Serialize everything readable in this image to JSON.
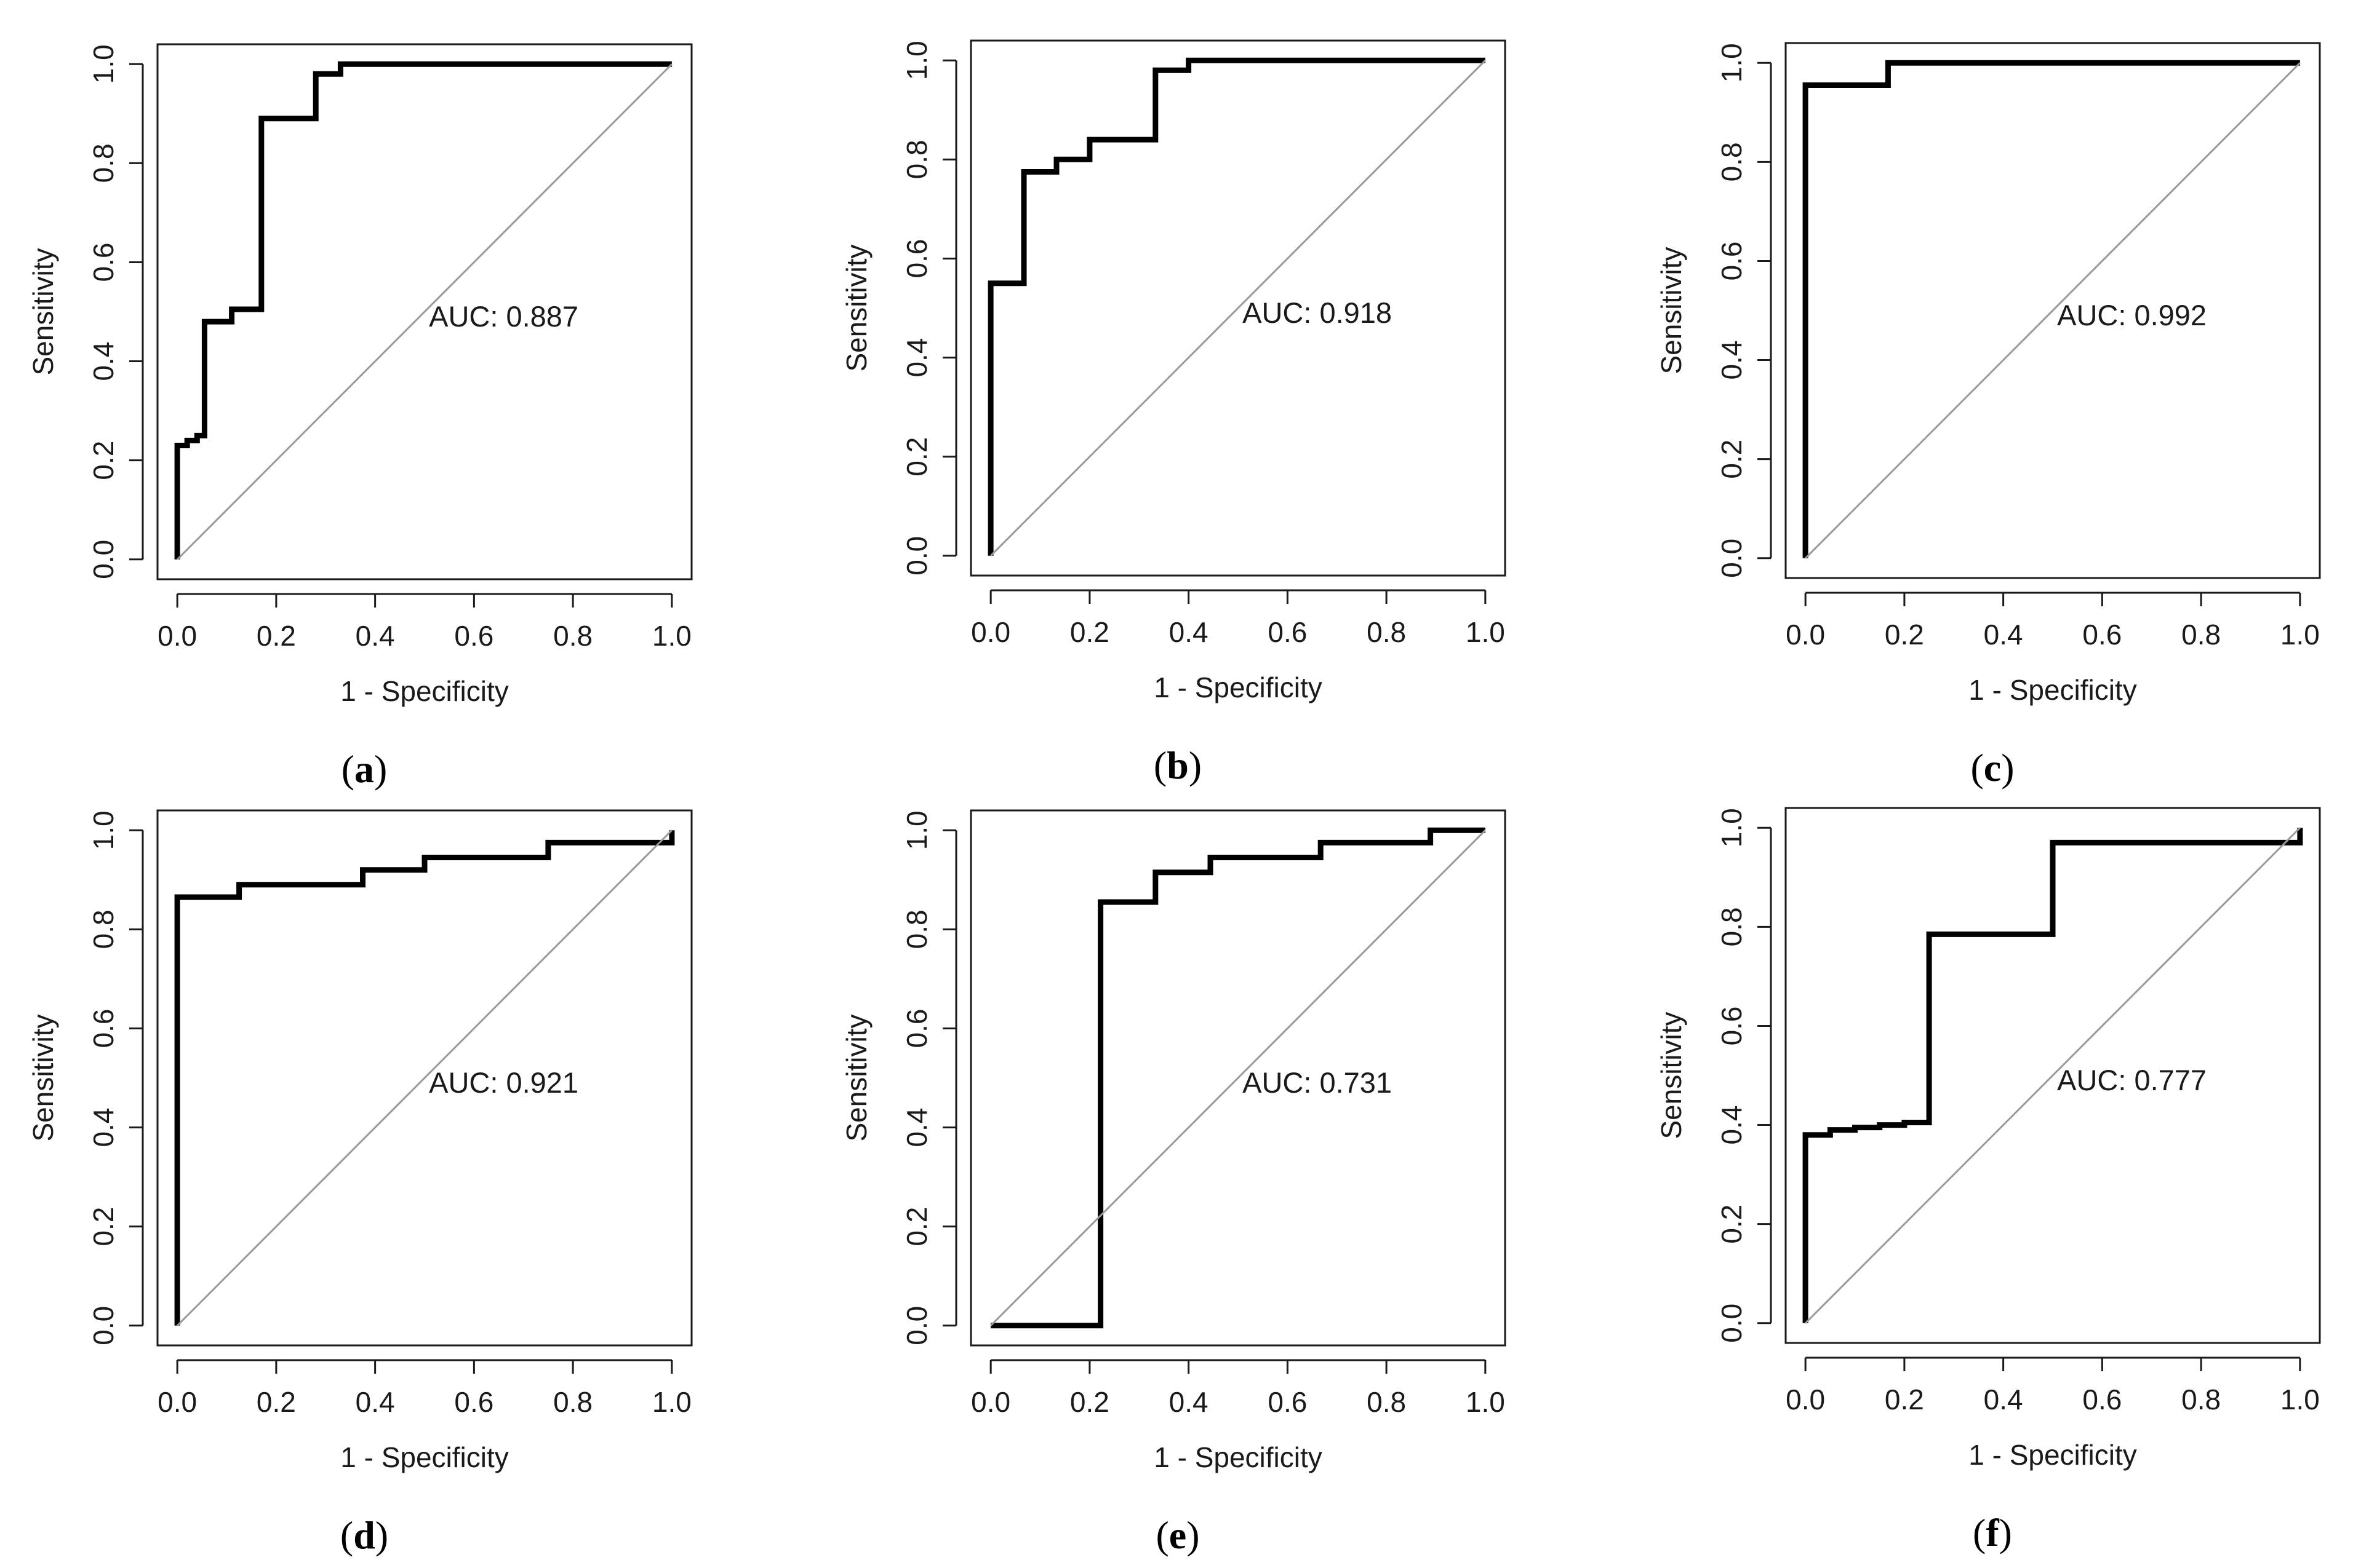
{
  "chart_data": [
    {
      "type": "line",
      "panel": "a",
      "xlabel": "1 - Specificity",
      "ylabel": "Sensitivity",
      "xlim": [
        0,
        1
      ],
      "ylim": [
        0,
        1
      ],
      "xticks": [
        "0.0",
        "0.2",
        "0.4",
        "0.6",
        "0.8",
        "1.0"
      ],
      "yticks": [
        "0.0",
        "0.2",
        "0.4",
        "0.6",
        "0.8",
        "1.0"
      ],
      "annotation": "AUC: 0.887",
      "caption": "a",
      "series": [
        {
          "name": "ROC",
          "x": [
            0,
            0,
            0.02,
            0.02,
            0.04,
            0.04,
            0.055,
            0.055,
            0.11,
            0.11,
            0.17,
            0.17,
            0.28,
            0.28,
            0.33,
            0.33,
            1.0
          ],
          "y": [
            0,
            0.23,
            0.23,
            0.24,
            0.24,
            0.25,
            0.25,
            0.48,
            0.48,
            0.505,
            0.505,
            0.89,
            0.89,
            0.98,
            0.98,
            1.0,
            1.0
          ]
        },
        {
          "name": "reference",
          "x": [
            0,
            1
          ],
          "y": [
            0,
            1
          ]
        }
      ]
    },
    {
      "type": "line",
      "panel": "b",
      "xlabel": "1 - Specificity",
      "ylabel": "Sensitivity",
      "xlim": [
        0,
        1
      ],
      "ylim": [
        0,
        1
      ],
      "xticks": [
        "0.0",
        "0.2",
        "0.4",
        "0.6",
        "0.8",
        "1.0"
      ],
      "yticks": [
        "0.0",
        "0.2",
        "0.4",
        "0.6",
        "0.8",
        "1.0"
      ],
      "annotation": "AUC: 0.918",
      "caption": "b",
      "series": [
        {
          "name": "ROC",
          "x": [
            0,
            0,
            0.067,
            0.067,
            0.133,
            0.133,
            0.2,
            0.2,
            0.333,
            0.333,
            0.4,
            0.4,
            1.0
          ],
          "y": [
            0,
            0.55,
            0.55,
            0.775,
            0.775,
            0.8,
            0.8,
            0.84,
            0.84,
            0.98,
            0.98,
            1.0,
            1.0
          ]
        },
        {
          "name": "reference",
          "x": [
            0,
            1
          ],
          "y": [
            0,
            1
          ]
        }
      ]
    },
    {
      "type": "line",
      "panel": "c",
      "xlabel": "1 - Specificity",
      "ylabel": "Sensitivity",
      "xlim": [
        0,
        1
      ],
      "ylim": [
        0,
        1
      ],
      "xticks": [
        "0.0",
        "0.2",
        "0.4",
        "0.6",
        "0.8",
        "1.0"
      ],
      "yticks": [
        "0.0",
        "0.2",
        "0.4",
        "0.6",
        "0.8",
        "1.0"
      ],
      "annotation": "AUC: 0.992",
      "caption": "c",
      "series": [
        {
          "name": "ROC",
          "x": [
            0,
            0,
            0.167,
            0.167,
            1.0
          ],
          "y": [
            0,
            0.955,
            0.955,
            1.0,
            1.0
          ]
        },
        {
          "name": "reference",
          "x": [
            0,
            1
          ],
          "y": [
            0,
            1
          ]
        }
      ]
    },
    {
      "type": "line",
      "panel": "d",
      "xlabel": "1 - Specificity",
      "ylabel": "Sensitivity",
      "xlim": [
        0,
        1
      ],
      "ylim": [
        0,
        1
      ],
      "xticks": [
        "0.0",
        "0.2",
        "0.4",
        "0.6",
        "0.8",
        "1.0"
      ],
      "yticks": [
        "0.0",
        "0.2",
        "0.4",
        "0.6",
        "0.8",
        "1.0"
      ],
      "annotation": "AUC: 0.921",
      "caption": "d",
      "series": [
        {
          "name": "ROC",
          "x": [
            0,
            0,
            0.125,
            0.125,
            0.375,
            0.375,
            0.5,
            0.5,
            0.75,
            0.75,
            1.0,
            1.0
          ],
          "y": [
            0,
            0.865,
            0.865,
            0.89,
            0.89,
            0.92,
            0.92,
            0.945,
            0.945,
            0.975,
            0.975,
            1.0
          ]
        },
        {
          "name": "reference",
          "x": [
            0,
            1
          ],
          "y": [
            0,
            1
          ]
        }
      ]
    },
    {
      "type": "line",
      "panel": "e",
      "xlabel": "1 - Specificity",
      "ylabel": "Sensitivity",
      "xlim": [
        0,
        1
      ],
      "ylim": [
        0,
        1
      ],
      "xticks": [
        "0.0",
        "0.2",
        "0.4",
        "0.6",
        "0.8",
        "1.0"
      ],
      "yticks": [
        "0.0",
        "0.2",
        "0.4",
        "0.6",
        "0.8",
        "1.0"
      ],
      "annotation": "AUC: 0.731",
      "caption": "e",
      "series": [
        {
          "name": "ROC",
          "x": [
            0,
            0.222,
            0.222,
            0.333,
            0.333,
            0.444,
            0.444,
            0.667,
            0.667,
            0.889,
            0.889,
            1.0
          ],
          "y": [
            0,
            0,
            0.855,
            0.855,
            0.915,
            0.915,
            0.945,
            0.945,
            0.975,
            0.975,
            1.0,
            1.0
          ]
        },
        {
          "name": "reference",
          "x": [
            0,
            1
          ],
          "y": [
            0,
            1
          ]
        }
      ]
    },
    {
      "type": "line",
      "panel": "f",
      "xlabel": "1 - Specificity",
      "ylabel": "Sensitivity",
      "xlim": [
        0,
        1
      ],
      "ylim": [
        0,
        1
      ],
      "xticks": [
        "0.0",
        "0.2",
        "0.4",
        "0.6",
        "0.8",
        "1.0"
      ],
      "yticks": [
        "0.0",
        "0.2",
        "0.4",
        "0.6",
        "0.8",
        "1.0"
      ],
      "annotation": "AUC: 0.777",
      "caption": "f",
      "series": [
        {
          "name": "ROC",
          "x": [
            0,
            0,
            0.05,
            0.05,
            0.1,
            0.1,
            0.15,
            0.15,
            0.2,
            0.2,
            0.25,
            0.25,
            0.5,
            0.5,
            1.0,
            1.0
          ],
          "y": [
            0,
            0.38,
            0.38,
            0.39,
            0.39,
            0.395,
            0.395,
            0.4,
            0.4,
            0.405,
            0.405,
            0.785,
            0.785,
            0.97,
            0.97,
            1.0
          ]
        },
        {
          "name": "reference",
          "x": [
            0,
            1
          ],
          "y": [
            0,
            1
          ]
        }
      ]
    }
  ]
}
